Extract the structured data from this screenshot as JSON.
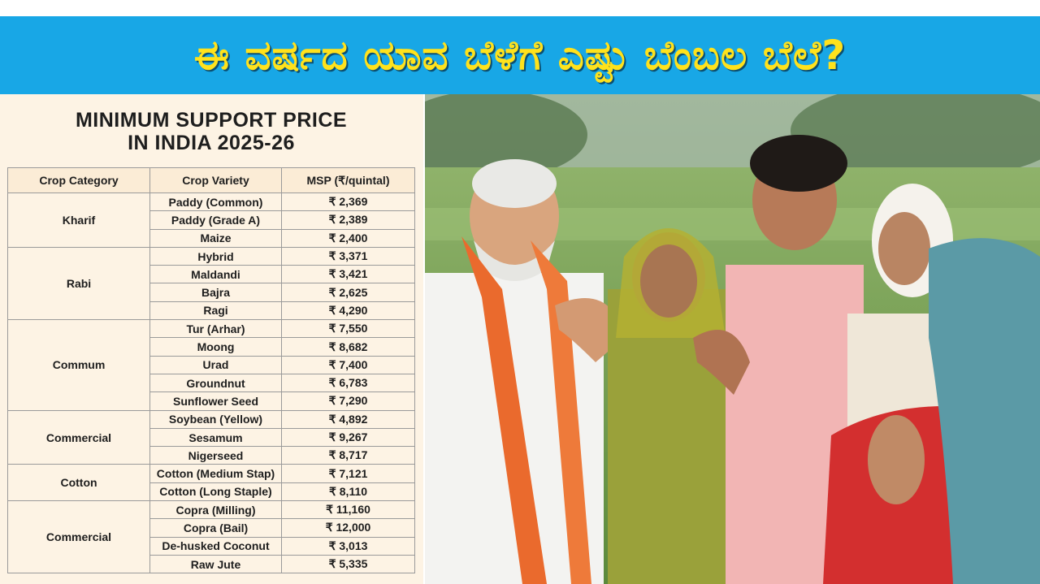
{
  "banner": {
    "title": "ಈ ವರ್ಷದ ಯಾವ ಬೆಳೆಗೆ ಎಷ್ಟು ಬೆಂಬಲ ಬೆಲೆ?"
  },
  "table": {
    "title_line1": "MINIMUM SUPPORT PRICE",
    "title_line2": "IN INDIA 2025-26",
    "headers": [
      "Crop Category",
      "Crop Variety",
      "MSP (₹/quintal)"
    ],
    "groups": [
      {
        "category": "Kharif",
        "rows": [
          {
            "variety": "Paddy (Common)",
            "msp": "₹ 2,369"
          },
          {
            "variety": "Paddy (Grade A)",
            "msp": "₹ 2,389"
          },
          {
            "variety": "Maize",
            "msp": "₹ 2,400"
          }
        ]
      },
      {
        "category": "Rabi",
        "rows": [
          {
            "variety": "Hybrid",
            "msp": "₹ 3,371"
          },
          {
            "variety": "Maldandi",
            "msp": "₹ 3,421"
          },
          {
            "variety": "Bajra",
            "msp": "₹ 2,625"
          },
          {
            "variety": "Ragi",
            "msp": "₹ 4,290"
          }
        ]
      },
      {
        "category": "Commum",
        "rows": [
          {
            "variety": "Tur (Arhar)",
            "msp": "₹ 7,550"
          },
          {
            "variety": "Moong",
            "msp": "₹ 8,682"
          },
          {
            "variety": "Urad",
            "msp": "₹ 7,400"
          },
          {
            "variety": "Groundnut",
            "msp": "₹ 6,783"
          },
          {
            "variety": "Sunflower Seed",
            "msp": "₹ 7,290"
          }
        ]
      },
      {
        "category": "Commercial",
        "rows": [
          {
            "variety": "Soybean (Yellow)",
            "msp": "₹ 4,892"
          },
          {
            "variety": "Sesamum",
            "msp": "₹ 9,267"
          },
          {
            "variety": "Nigerseed",
            "msp": "₹ 8,717"
          }
        ]
      },
      {
        "category": "Cotton",
        "rows": [
          {
            "variety": "Cotton (Medium Stap)",
            "msp": "₹ 7,121"
          },
          {
            "variety": "Cotton (Long Staple)",
            "msp": "₹ 8,110"
          }
        ]
      },
      {
        "category": "Commercial",
        "rows": [
          {
            "variety": "Copra (Milling)",
            "msp": "₹ 11,160"
          },
          {
            "variety": "Copra (Bail)",
            "msp": "₹ 12,000"
          },
          {
            "variety": "De-husked Coconut",
            "msp": "₹ 3,013"
          },
          {
            "variety": "Raw Jute",
            "msp": "₹ 5,335"
          }
        ]
      }
    ]
  },
  "colors": {
    "banner_bg": "#18a7e6",
    "banner_text": "#ffe21c",
    "panel_bg": "#fdf3e4"
  }
}
